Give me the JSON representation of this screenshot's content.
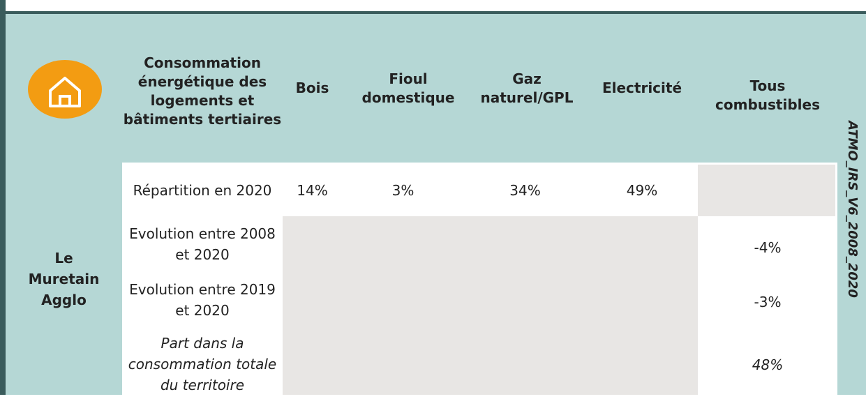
{
  "header": {
    "title": "Consommation énergétique des logements et bâtiments tertiaires",
    "columns": [
      "Bois",
      "Fioul domestique",
      "Gaz naturel/GPL",
      "Electricité",
      "Tous combustibles"
    ]
  },
  "territory": "Le Muretain Agglo",
  "source": "ATMO_IRS_V6_2008_2020",
  "rows": [
    {
      "label": "Répartition en 2020",
      "values": [
        "14%",
        "3%",
        "34%",
        "49%"
      ]
    },
    {
      "label": "Evolution entre 2008 et 2020",
      "total": "-4%"
    },
    {
      "label": "Evolution entre 2019 et 2020",
      "total": "-3%"
    },
    {
      "label": "Part dans la consommation totale du territoire",
      "total": "48%"
    }
  ]
}
